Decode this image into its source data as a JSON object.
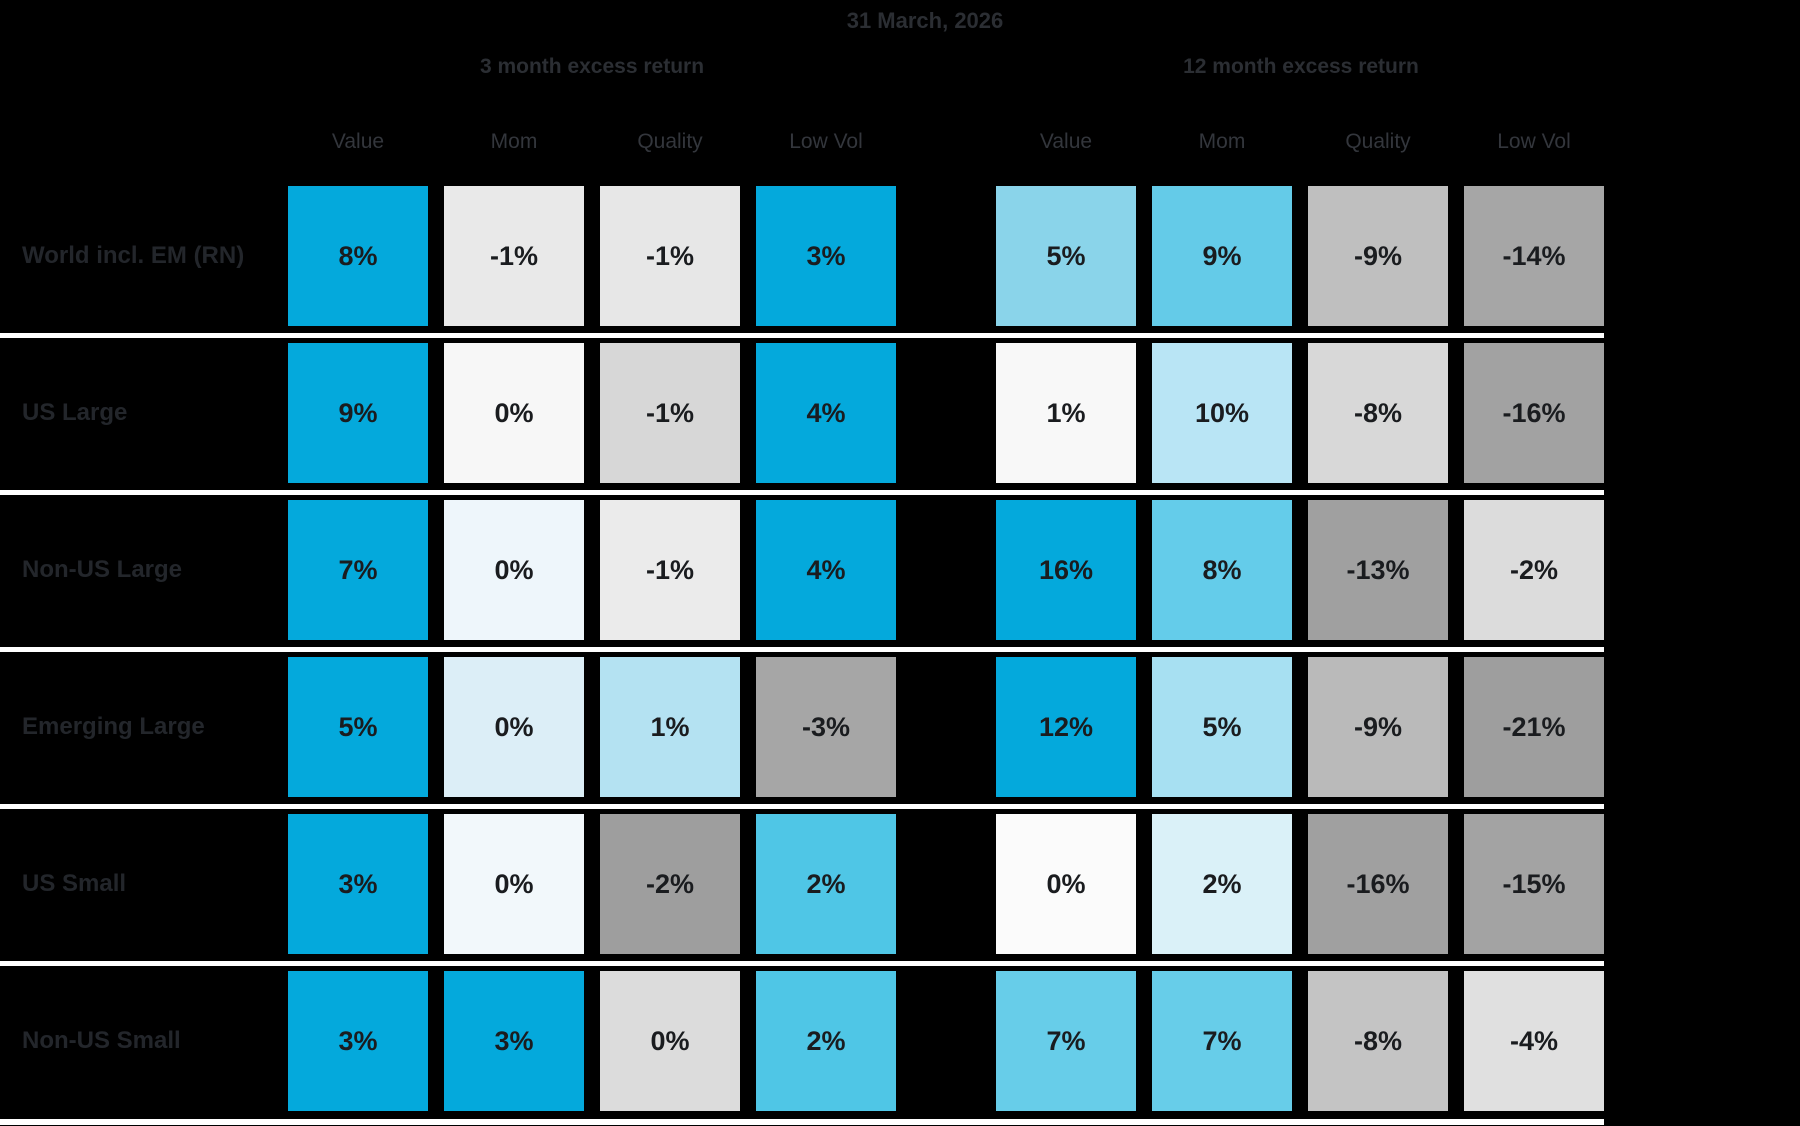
{
  "title": "31 March, 2026",
  "sections": [
    {
      "label": "3 month excess return",
      "columns": [
        "Value",
        "Mom",
        "Quality",
        "Low Vol"
      ]
    },
    {
      "label": "12 month excess return",
      "columns": [
        "Value",
        "Mom",
        "Quality",
        "Low Vol"
      ]
    }
  ],
  "rows": [
    {
      "label": "World incl. EM (RN)",
      "cells": [
        {
          "value": "8%",
          "color": "#04a9dc"
        },
        {
          "value": "-1%",
          "color": "#e9e9e9"
        },
        {
          "value": "-1%",
          "color": "#e7e7e7"
        },
        {
          "value": "3%",
          "color": "#04a9dc"
        },
        {
          "value": "5%",
          "color": "#8ad4ea"
        },
        {
          "value": "9%",
          "color": "#64cbe8"
        },
        {
          "value": "-9%",
          "color": "#bfbfbf"
        },
        {
          "value": "-14%",
          "color": "#a6a6a6"
        }
      ]
    },
    {
      "label": "US Large",
      "cells": [
        {
          "value": "9%",
          "color": "#04a9dc"
        },
        {
          "value": "0%",
          "color": "#f7f7f7"
        },
        {
          "value": "-1%",
          "color": "#d7d7d7"
        },
        {
          "value": "4%",
          "color": "#04a9dc"
        },
        {
          "value": "1%",
          "color": "#f8f8f8"
        },
        {
          "value": "10%",
          "color": "#b9e5f5"
        },
        {
          "value": "-8%",
          "color": "#d8d8d8"
        },
        {
          "value": "-16%",
          "color": "#a2a2a2"
        }
      ]
    },
    {
      "label": "Non-US Large",
      "cells": [
        {
          "value": "7%",
          "color": "#04a9dc"
        },
        {
          "value": "0%",
          "color": "#eef6fb"
        },
        {
          "value": "-1%",
          "color": "#ebebeb"
        },
        {
          "value": "4%",
          "color": "#04a9dc"
        },
        {
          "value": "16%",
          "color": "#04a9dc"
        },
        {
          "value": "8%",
          "color": "#64ccea"
        },
        {
          "value": "-13%",
          "color": "#a0a0a0"
        },
        {
          "value": "-2%",
          "color": "#dcdcdc"
        }
      ]
    },
    {
      "label": "Emerging Large",
      "cells": [
        {
          "value": "5%",
          "color": "#04a9dc"
        },
        {
          "value": "0%",
          "color": "#dceef7"
        },
        {
          "value": "1%",
          "color": "#b4e2f2"
        },
        {
          "value": "-3%",
          "color": "#a6a6a6"
        },
        {
          "value": "12%",
          "color": "#04a9dc"
        },
        {
          "value": "5%",
          "color": "#a7e0f2"
        },
        {
          "value": "-9%",
          "color": "#bababa"
        },
        {
          "value": "-21%",
          "color": "#9e9e9e"
        }
      ]
    },
    {
      "label": "US Small",
      "cells": [
        {
          "value": "3%",
          "color": "#04a9dc"
        },
        {
          "value": "0%",
          "color": "#f2f8fb"
        },
        {
          "value": "-2%",
          "color": "#9e9e9e"
        },
        {
          "value": "2%",
          "color": "#4fc6e6"
        },
        {
          "value": "0%",
          "color": "#fbfbfb"
        },
        {
          "value": "2%",
          "color": "#daf1f8"
        },
        {
          "value": "-16%",
          "color": "#a0a0a0"
        },
        {
          "value": "-15%",
          "color": "#a3a3a3"
        }
      ]
    },
    {
      "label": "Non-US Small",
      "cells": [
        {
          "value": "3%",
          "color": "#04a9dc"
        },
        {
          "value": "3%",
          "color": "#04a9dc"
        },
        {
          "value": "0%",
          "color": "#dcdcdc"
        },
        {
          "value": "2%",
          "color": "#4fc6e6"
        },
        {
          "value": "7%",
          "color": "#67cde9"
        },
        {
          "value": "7%",
          "color": "#67cde9"
        },
        {
          "value": "-8%",
          "color": "#c4c4c4"
        },
        {
          "value": "-4%",
          "color": "#e0e0e0"
        }
      ]
    }
  ],
  "colors": {
    "background": "#000000",
    "separator_line": "#ffffff",
    "strong_positive_blue": "#04a9dc",
    "header_text_gray": "#2b2e33",
    "cell_text_dark": "#1a1c1f"
  },
  "chart_data": {
    "type": "heatmap",
    "title": "31 March, 2026",
    "column_groups": [
      "3 month excess return",
      "12 month excess return"
    ],
    "columns": [
      "Value",
      "Mom",
      "Quality",
      "Low Vol"
    ],
    "rows": [
      "World incl. EM (RN)",
      "US Large",
      "Non-US Large",
      "Emerging Large",
      "US Small",
      "Non-US Small"
    ],
    "values_3_month_pct": [
      [
        8,
        -1,
        -1,
        3
      ],
      [
        9,
        0,
        -1,
        4
      ],
      [
        7,
        0,
        -1,
        4
      ],
      [
        5,
        0,
        1,
        -3
      ],
      [
        3,
        0,
        -2,
        2
      ],
      [
        3,
        3,
        0,
        2
      ]
    ],
    "values_12_month_pct": [
      [
        5,
        9,
        -9,
        -14
      ],
      [
        1,
        10,
        -8,
        -16
      ],
      [
        16,
        8,
        -13,
        -2
      ],
      [
        12,
        5,
        -9,
        -21
      ],
      [
        0,
        2,
        -16,
        -15
      ],
      [
        7,
        7,
        -8,
        -4
      ]
    ],
    "color_scale": "strong blue = large positive excess return, light blue = small positive, white = near zero, gray = negative (darker = more negative)",
    "legend_position": "none",
    "grid": false
  }
}
